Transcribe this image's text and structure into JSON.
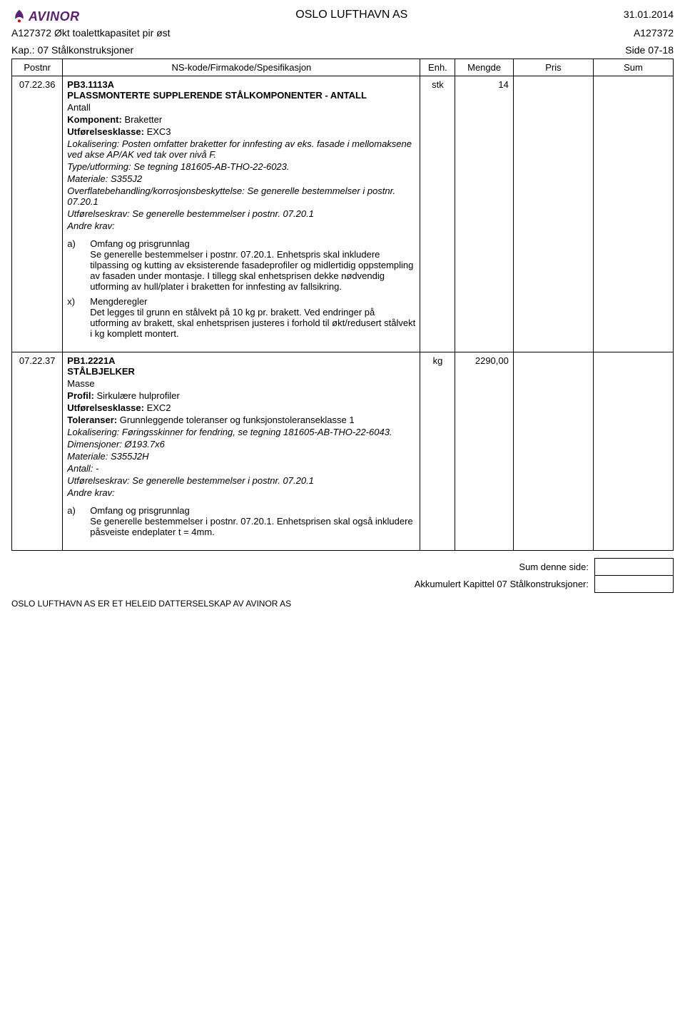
{
  "header": {
    "logo_text": "AVINOR",
    "center": "OSLO LUFTHAVN AS",
    "date": "31.01.2014"
  },
  "subheader": {
    "left": "A127372 Økt toalettkapasitet pir øst",
    "right": "A127372"
  },
  "subheader2": {
    "left": "Kap.: 07 Stålkonstruksjoner",
    "right": "Side 07-18"
  },
  "columns": {
    "postnr": "Postnr",
    "spes": "NS-kode/Firmakode/Spesifikasjon",
    "enh": "Enh.",
    "mengde": "Mengde",
    "pris": "Pris",
    "sum": "Sum"
  },
  "rows": [
    {
      "postnr": "07.22.36",
      "code": "PB3.1113A",
      "title": "PLASSMONTERTE SUPPLERENDE STÅLKOMPONENTER - ANTALL",
      "measure_label": "Antall",
      "enh": "stk",
      "mengde": "14",
      "lines": [
        {
          "bold": "Komponent:",
          "rest": " Braketter"
        },
        {
          "bold": "Utførelsesklasse:",
          "rest": " EXC3"
        }
      ],
      "italics": [
        {
          "label": "Lokalisering:",
          "text": " Posten omfatter braketter for innfesting av eks. fasade i mellomaksene ved akse AP/AK ved tak over nivå F."
        },
        {
          "label": "Type/utforming:",
          "text": " Se tegning 181605-AB-THO-22-6023."
        },
        {
          "label": "Materiale:",
          "text": " S355J2"
        },
        {
          "label": "Overflatebehandling/korrosjonsbeskyttelse:",
          "text": " Se generelle bestemmelser i postnr. 07.20.1"
        },
        {
          "label": "Utførelseskrav:",
          "text": " Se generelle bestemmelser i postnr. 07.20.1"
        }
      ],
      "andre_krav": "Andre krav:",
      "sublist": [
        {
          "lbl": "a)",
          "heading": "Omfang og prisgrunnlag",
          "text": "Se generelle bestemmelser i postnr. 07.20.1. Enhetspris skal inkludere tilpassing og kutting av eksisterende fasadeprofiler og midlertidig oppstempling av fasaden under montasje. I tillegg skal enhetsprisen dekke nødvendig utforming av hull/plater i braketten for innfesting av fallsikring."
        },
        {
          "lbl": "x)",
          "heading": "Mengderegler",
          "text": "Det legges til grunn en stålvekt på 10 kg pr. brakett. Ved endringer på utforming av brakett, skal enhetsprisen justeres i forhold til økt/redusert stålvekt i kg komplett montert."
        }
      ]
    },
    {
      "postnr": "07.22.37",
      "code": "PB1.2221A",
      "title": "STÅLBJELKER",
      "measure_label": "Masse",
      "enh": "kg",
      "mengde": "2290,00",
      "lines": [
        {
          "bold": "Profil:",
          "rest": " Sirkulære hulprofiler"
        },
        {
          "bold": "Utførelsesklasse:",
          "rest": " EXC2"
        },
        {
          "bold": "Toleranser:",
          "rest": " Grunnleggende toleranser og funksjonstoleranseklasse 1"
        }
      ],
      "italics": [
        {
          "label": "Lokalisering:",
          "text": " Føringsskinner for fendring, se tegning 181605-AB-THO-22-6043."
        },
        {
          "label": "Dimensjoner:",
          "text": " Ø193.7x6"
        },
        {
          "label": "Materiale:",
          "text": " S355J2H"
        },
        {
          "label": "Antall:",
          "text": " -"
        },
        {
          "label": "Utførelseskrav:",
          "text": " Se generelle bestemmelser i postnr. 07.20.1"
        }
      ],
      "andre_krav": "Andre krav:",
      "sublist": [
        {
          "lbl": "a)",
          "heading": "Omfang og prisgrunnlag",
          "text": "Se generelle bestemmelser i postnr. 07.20.1. Enhetsprisen skal også inkludere påsveiste endeplater t = 4mm."
        }
      ]
    }
  ],
  "totals": {
    "sum_side": "Sum denne side:",
    "akkumulert": "Akkumulert Kapittel 07 Stålkonstruksjoner:"
  },
  "footer": "OSLO LUFTHAVN AS ER ET HELEID DATTERSELSKAP AV AVINOR AS",
  "colors": {
    "logo": "#5a226f",
    "border": "#000000",
    "text": "#000000",
    "background": "#ffffff"
  }
}
